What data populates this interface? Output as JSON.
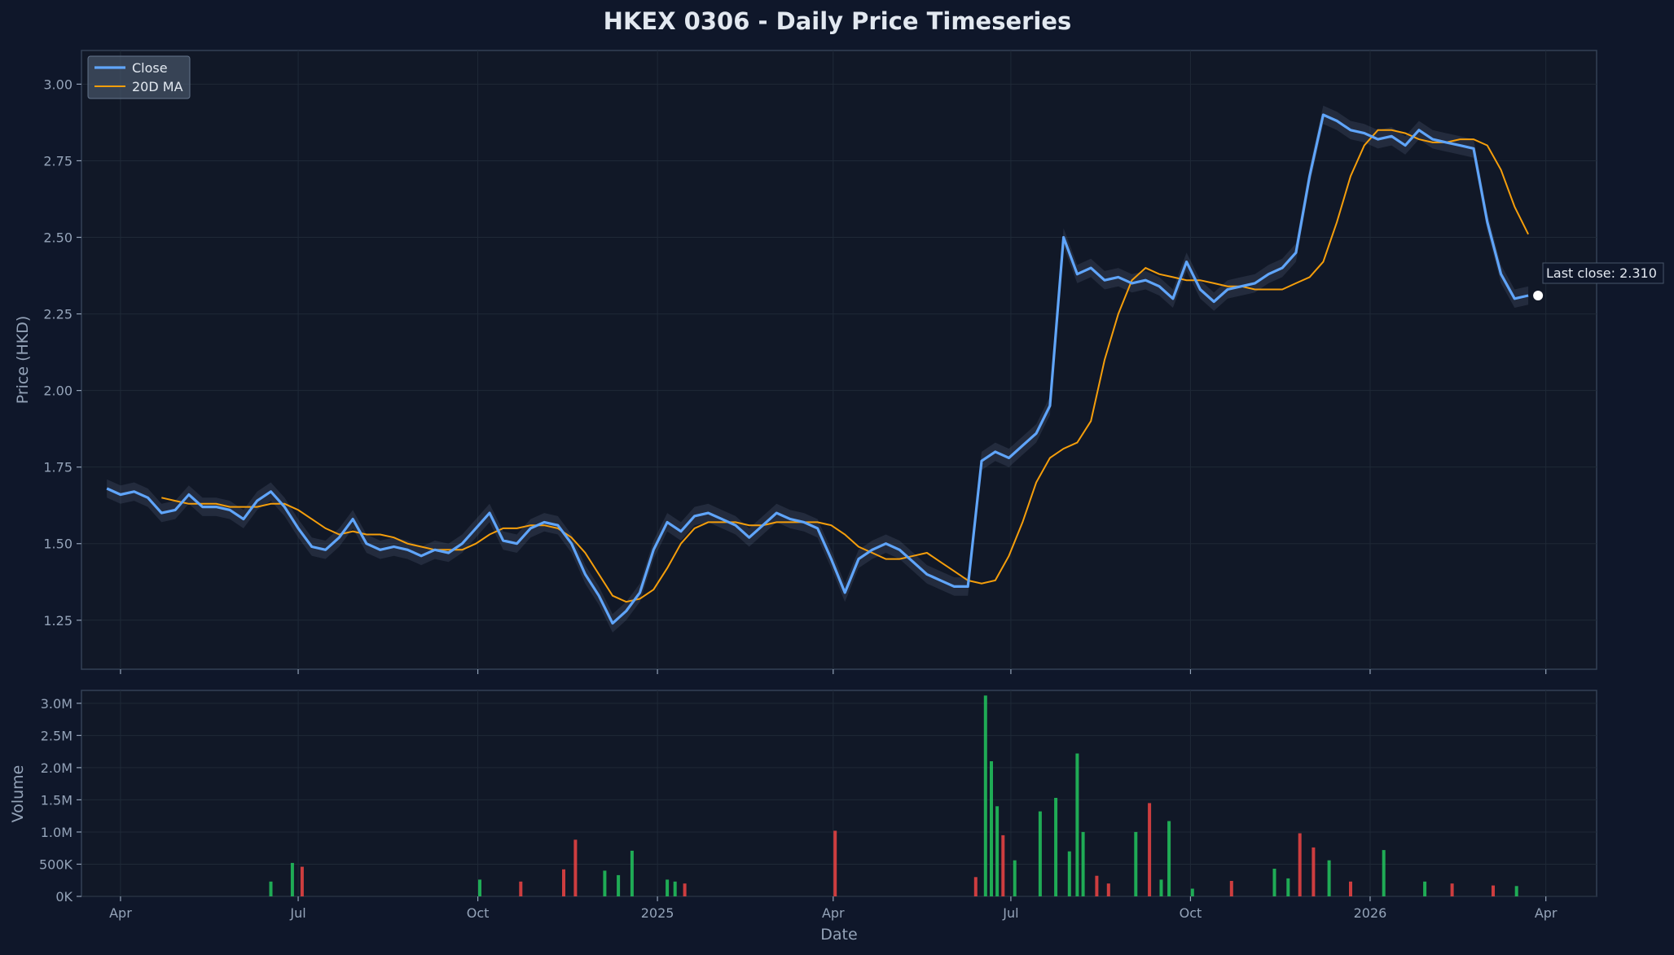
{
  "chart_data": [
    {
      "type": "line",
      "title": "HKEX 0306 - Daily Price Timeseries",
      "ylabel": "Price (HKD)",
      "ylim": [
        1.09,
        3.11
      ],
      "yticks": [
        "1.25",
        "1.50",
        "1.75",
        "2.00",
        "2.25",
        "2.50",
        "2.75",
        "3.00"
      ],
      "grid": true,
      "legend": "top-left",
      "annotation": "Last close: 2.310",
      "colors": {
        "close": "#60a5fa",
        "ma": "#f59e0b",
        "band": "#64748b"
      },
      "series": [
        {
          "name": "Close",
          "x": [
            "2024-03-25",
            "2024-04-01",
            "2024-04-08",
            "2024-04-15",
            "2024-04-22",
            "2024-04-29",
            "2024-05-06",
            "2024-05-13",
            "2024-05-20",
            "2024-05-27",
            "2024-06-03",
            "2024-06-10",
            "2024-06-17",
            "2024-06-24",
            "2024-07-01",
            "2024-07-08",
            "2024-07-15",
            "2024-07-22",
            "2024-07-29",
            "2024-08-05",
            "2024-08-12",
            "2024-08-19",
            "2024-08-26",
            "2024-09-02",
            "2024-09-09",
            "2024-09-16",
            "2024-09-23",
            "2024-09-30",
            "2024-10-07",
            "2024-10-14",
            "2024-10-21",
            "2024-10-28",
            "2024-11-04",
            "2024-11-11",
            "2024-11-18",
            "2024-11-25",
            "2024-12-02",
            "2024-12-09",
            "2024-12-16",
            "2024-12-23",
            "2024-12-30",
            "2025-01-06",
            "2025-01-13",
            "2025-01-20",
            "2025-01-27",
            "2025-02-03",
            "2025-02-10",
            "2025-02-17",
            "2025-02-24",
            "2025-03-03",
            "2025-03-10",
            "2025-03-17",
            "2025-03-24",
            "2025-03-31",
            "2025-04-07",
            "2025-04-14",
            "2025-04-21",
            "2025-04-28",
            "2025-05-05",
            "2025-05-12",
            "2025-05-19",
            "2025-05-26",
            "2025-06-02",
            "2025-06-09",
            "2025-06-16",
            "2025-06-23",
            "2025-06-30",
            "2025-07-07",
            "2025-07-14",
            "2025-07-21",
            "2025-07-28",
            "2025-08-04",
            "2025-08-11",
            "2025-08-18",
            "2025-08-25",
            "2025-09-01",
            "2025-09-08",
            "2025-09-15",
            "2025-09-22",
            "2025-09-29",
            "2025-10-06",
            "2025-10-13",
            "2025-10-20",
            "2025-10-27",
            "2025-11-03",
            "2025-11-10",
            "2025-11-17",
            "2025-11-24",
            "2025-12-01",
            "2025-12-08",
            "2025-12-15",
            "2025-12-22",
            "2025-12-29",
            "2026-01-05",
            "2026-01-12",
            "2026-01-19",
            "2026-01-26",
            "2026-02-02",
            "2026-02-09",
            "2026-02-16",
            "2026-02-23",
            "2026-03-02",
            "2026-03-09",
            "2026-03-16",
            "2026-03-23"
          ],
          "values": [
            1.68,
            1.66,
            1.67,
            1.65,
            1.6,
            1.61,
            1.66,
            1.62,
            1.62,
            1.61,
            1.58,
            1.64,
            1.67,
            1.62,
            1.55,
            1.49,
            1.48,
            1.52,
            1.58,
            1.5,
            1.48,
            1.49,
            1.48,
            1.46,
            1.48,
            1.47,
            1.5,
            1.55,
            1.6,
            1.51,
            1.5,
            1.55,
            1.57,
            1.56,
            1.5,
            1.4,
            1.33,
            1.24,
            1.28,
            1.34,
            1.48,
            1.57,
            1.54,
            1.59,
            1.6,
            1.58,
            1.56,
            1.52,
            1.56,
            1.6,
            1.58,
            1.57,
            1.55,
            1.45,
            1.34,
            1.45,
            1.48,
            1.5,
            1.48,
            1.44,
            1.4,
            1.38,
            1.36,
            1.36,
            1.77,
            1.8,
            1.78,
            1.82,
            1.86,
            1.95,
            2.5,
            2.38,
            2.4,
            2.36,
            2.37,
            2.35,
            2.36,
            2.34,
            2.3,
            2.42,
            2.33,
            2.29,
            2.33,
            2.34,
            2.35,
            2.38,
            2.4,
            2.45,
            2.7,
            2.9,
            2.88,
            2.85,
            2.84,
            2.82,
            2.83,
            2.8,
            2.85,
            2.82,
            2.81,
            2.8,
            2.79,
            2.55,
            2.38,
            2.3,
            2.31
          ]
        },
        {
          "name": "20D MA",
          "x": [
            "2024-04-22",
            "2024-04-29",
            "2024-05-06",
            "2024-05-13",
            "2024-05-20",
            "2024-05-27",
            "2024-06-03",
            "2024-06-10",
            "2024-06-17",
            "2024-06-24",
            "2024-07-01",
            "2024-07-08",
            "2024-07-15",
            "2024-07-22",
            "2024-07-29",
            "2024-08-05",
            "2024-08-12",
            "2024-08-19",
            "2024-08-26",
            "2024-09-02",
            "2024-09-09",
            "2024-09-16",
            "2024-09-23",
            "2024-09-30",
            "2024-10-07",
            "2024-10-14",
            "2024-10-21",
            "2024-10-28",
            "2024-11-04",
            "2024-11-11",
            "2024-11-18",
            "2024-11-25",
            "2024-12-02",
            "2024-12-09",
            "2024-12-16",
            "2024-12-23",
            "2024-12-30",
            "2025-01-06",
            "2025-01-13",
            "2025-01-20",
            "2025-01-27",
            "2025-02-03",
            "2025-02-10",
            "2025-02-17",
            "2025-02-24",
            "2025-03-03",
            "2025-03-10",
            "2025-03-17",
            "2025-03-24",
            "2025-03-31",
            "2025-04-07",
            "2025-04-14",
            "2025-04-21",
            "2025-04-28",
            "2025-05-05",
            "2025-05-12",
            "2025-05-19",
            "2025-05-26",
            "2025-06-02",
            "2025-06-09",
            "2025-06-16",
            "2025-06-23",
            "2025-06-30",
            "2025-07-07",
            "2025-07-14",
            "2025-07-21",
            "2025-07-28",
            "2025-08-04",
            "2025-08-11",
            "2025-08-18",
            "2025-08-25",
            "2025-09-01",
            "2025-09-08",
            "2025-09-15",
            "2025-09-22",
            "2025-09-29",
            "2025-10-06",
            "2025-10-13",
            "2025-10-20",
            "2025-10-27",
            "2025-11-03",
            "2025-11-10",
            "2025-11-17",
            "2025-11-24",
            "2025-12-01",
            "2025-12-08",
            "2025-12-15",
            "2025-12-22",
            "2025-12-29",
            "2026-01-05",
            "2026-01-12",
            "2026-01-19",
            "2026-01-26",
            "2026-02-02",
            "2026-02-09",
            "2026-02-16",
            "2026-02-23",
            "2026-03-02",
            "2026-03-09",
            "2026-03-16",
            "2026-03-23"
          ],
          "values": [
            1.65,
            1.64,
            1.63,
            1.63,
            1.63,
            1.62,
            1.62,
            1.62,
            1.63,
            1.63,
            1.61,
            1.58,
            1.55,
            1.53,
            1.54,
            1.53,
            1.53,
            1.52,
            1.5,
            1.49,
            1.48,
            1.48,
            1.48,
            1.5,
            1.53,
            1.55,
            1.55,
            1.56,
            1.56,
            1.55,
            1.52,
            1.47,
            1.4,
            1.33,
            1.31,
            1.32,
            1.35,
            1.42,
            1.5,
            1.55,
            1.57,
            1.57,
            1.57,
            1.56,
            1.56,
            1.57,
            1.57,
            1.57,
            1.57,
            1.56,
            1.53,
            1.49,
            1.47,
            1.45,
            1.45,
            1.46,
            1.47,
            1.44,
            1.41,
            1.38,
            1.37,
            1.38,
            1.46,
            1.57,
            1.7,
            1.78,
            1.81,
            1.83,
            1.9,
            2.1,
            2.25,
            2.36,
            2.4,
            2.38,
            2.37,
            2.36,
            2.36,
            2.35,
            2.34,
            2.34,
            2.33,
            2.33,
            2.33,
            2.35,
            2.37,
            2.42,
            2.55,
            2.7,
            2.8,
            2.85,
            2.85,
            2.84,
            2.82,
            2.81,
            2.81,
            2.82,
            2.82,
            2.8,
            2.72,
            2.6,
            2.51
          ]
        }
      ]
    },
    {
      "type": "bar",
      "xlabel": "Date",
      "ylabel": "Volume",
      "ylim": [
        0,
        3200000
      ],
      "yticks": [
        "0K",
        "500K",
        "1.0M",
        "1.5M",
        "2.0M",
        "2.5M",
        "3.0M"
      ],
      "xticks": [
        "Apr",
        "Jul",
        "Oct",
        "2025",
        "Apr",
        "Jul",
        "Oct",
        "2026",
        "Apr"
      ],
      "colors": {
        "up": "#22c55e",
        "down": "#ef4444"
      },
      "x": [
        "2024-06-17",
        "2024-06-28",
        "2024-07-03",
        "2024-10-02",
        "2024-10-23",
        "2024-11-14",
        "2024-11-20",
        "2024-12-05",
        "2024-12-12",
        "2024-12-19",
        "2025-01-06",
        "2025-01-10",
        "2025-01-15",
        "2025-04-02",
        "2025-06-13",
        "2025-06-18",
        "2025-06-21",
        "2025-06-24",
        "2025-06-27",
        "2025-07-03",
        "2025-07-16",
        "2025-07-24",
        "2025-07-31",
        "2025-08-04",
        "2025-08-07",
        "2025-08-14",
        "2025-08-20",
        "2025-09-03",
        "2025-09-10",
        "2025-09-16",
        "2025-09-20",
        "2025-10-02",
        "2025-10-22",
        "2025-11-13",
        "2025-11-20",
        "2025-11-26",
        "2025-12-03",
        "2025-12-11",
        "2025-12-22",
        "2026-01-08",
        "2026-01-29",
        "2026-02-12",
        "2026-03-05",
        "2026-03-17"
      ],
      "values": [
        230000,
        520000,
        460000,
        260000,
        230000,
        420000,
        880000,
        400000,
        330000,
        710000,
        260000,
        230000,
        200000,
        1020000,
        300000,
        3120000,
        2100000,
        1400000,
        950000,
        560000,
        1320000,
        1530000,
        700000,
        2220000,
        1000000,
        320000,
        200000,
        1000000,
        1450000,
        260000,
        1170000,
        120000,
        240000,
        430000,
        280000,
        980000,
        760000,
        560000,
        230000,
        720000,
        230000,
        200000,
        170000,
        160000
      ],
      "up": [
        true,
        true,
        false,
        true,
        false,
        false,
        false,
        true,
        true,
        true,
        true,
        true,
        false,
        false,
        false,
        true,
        true,
        true,
        false,
        true,
        true,
        true,
        true,
        true,
        true,
        false,
        false,
        true,
        false,
        true,
        true,
        true,
        false,
        true,
        true,
        false,
        false,
        true,
        false,
        true,
        true,
        false,
        false,
        true
      ]
    }
  ]
}
